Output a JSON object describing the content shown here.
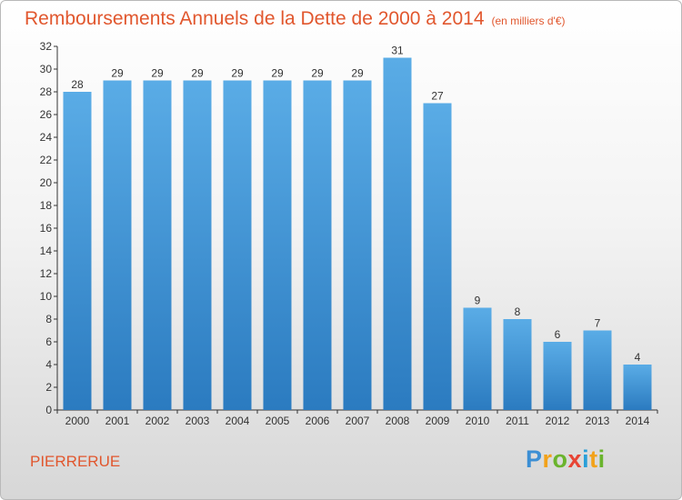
{
  "title": "Remboursements Annuels de la Dette de 2000 à 2014",
  "unit": "(en milliers d'€)",
  "commune": "PIERRERUE",
  "logo": {
    "letters": [
      "P",
      "r",
      "o",
      "x",
      "i",
      "t",
      "i"
    ],
    "colors": [
      "#3c8fd4",
      "#f2a21a",
      "#6ab42d",
      "#e84434",
      "#2a9fd8",
      "#f2a21a",
      "#6ab42d"
    ]
  },
  "colors": {
    "bar_top": "#5aace6",
    "bar_bottom": "#2b7bc0",
    "text": "#e1572e",
    "axis": "#333333"
  },
  "chart_data": {
    "type": "bar",
    "title": "Remboursements Annuels de la Dette de 2000 à 2014",
    "xlabel": "",
    "ylabel": "en milliers d'€",
    "ylim": [
      0,
      32
    ],
    "yticks": [
      0,
      2,
      4,
      6,
      8,
      10,
      12,
      14,
      16,
      18,
      20,
      22,
      24,
      26,
      28,
      30,
      32
    ],
    "grid": false,
    "categories": [
      "2000",
      "2001",
      "2002",
      "2003",
      "2004",
      "2005",
      "2006",
      "2007",
      "2008",
      "2009",
      "2010",
      "2011",
      "2012",
      "2013",
      "2014"
    ],
    "values": [
      28,
      29,
      29,
      29,
      29,
      29,
      29,
      29,
      31,
      27,
      9,
      8,
      6,
      7,
      4
    ]
  }
}
